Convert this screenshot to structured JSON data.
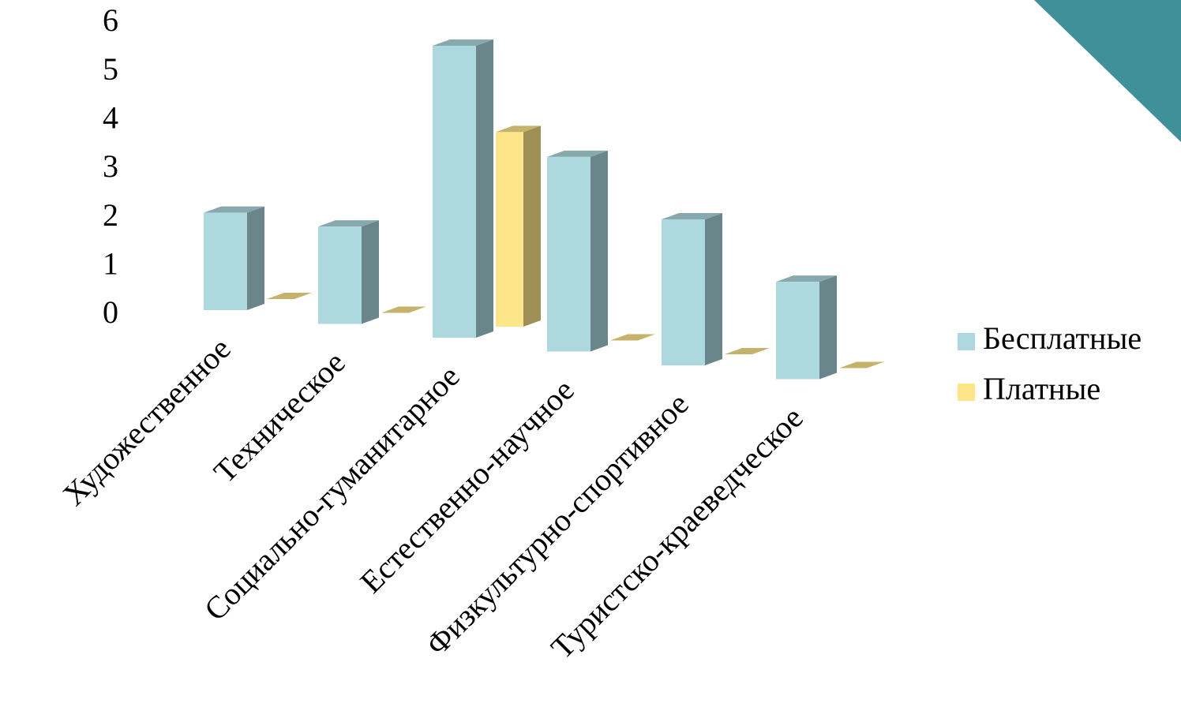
{
  "chart_data": {
    "type": "bar3d",
    "categories": [
      "Художественное",
      "Техническое",
      "Социально-гуманитарное",
      "Естественно-научное",
      "Физкультурно-спортивное",
      "Туристско-краеведческое"
    ],
    "series": [
      {
        "name": "Бесплатные",
        "color": "#add8de",
        "values": [
          2,
          2,
          6,
          4,
          3,
          2
        ]
      },
      {
        "name": "Платные",
        "color": "#fde68a",
        "values": [
          0,
          0,
          4,
          0,
          0,
          0
        ]
      }
    ],
    "ylim": [
      0,
      6
    ],
    "yticks": [
      0,
      1,
      2,
      3,
      4,
      5,
      6
    ],
    "legend": "right"
  }
}
